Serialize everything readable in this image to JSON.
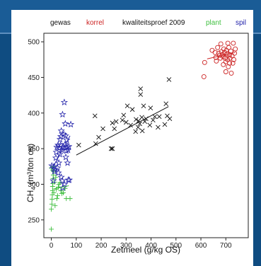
{
  "chart_data": {
    "type": "scatter",
    "title": "kwaliteitsproef 2009",
    "xlabel": "Zetmeel (g/kg OS)",
    "ylabel_main": "CH",
    "ylabel_sub": "4",
    "ylabel_rest": " (m³/ton os)",
    "xlim": [
      -30,
      790
    ],
    "ylim": [
      225,
      512
    ],
    "xticks": [
      0,
      100,
      200,
      300,
      400,
      500,
      600,
      700
    ],
    "yticks": [
      250,
      300,
      350,
      400,
      450,
      500
    ],
    "legend_header": "gewas",
    "legend": [
      "korrel",
      "plant",
      "spil"
    ],
    "colors": {
      "gewas": "#111111",
      "korrel": "#cc2222",
      "plant": "#3fbf3f",
      "spil": "#2222aa",
      "text": "#111111"
    },
    "series": [
      {
        "name": "gewas",
        "marker": "x",
        "color": "#111111",
        "points": [
          [
            110,
            355
          ],
          [
            178,
            357
          ],
          [
            175,
            396
          ],
          [
            190,
            366
          ],
          [
            207,
            378
          ],
          [
            240,
            350
          ],
          [
            245,
            350
          ],
          [
            253,
            378
          ],
          [
            245,
            386
          ],
          [
            260,
            388
          ],
          [
            285,
            390
          ],
          [
            290,
            397
          ],
          [
            300,
            387
          ],
          [
            305,
            410
          ],
          [
            318,
            383
          ],
          [
            325,
            405
          ],
          [
            338,
            374
          ],
          [
            340,
            391
          ],
          [
            348,
            380
          ],
          [
            350,
            389
          ],
          [
            355,
            385
          ],
          [
            358,
            426
          ],
          [
            358,
            434
          ],
          [
            363,
            394
          ],
          [
            365,
            375
          ],
          [
            370,
            410
          ],
          [
            375,
            388
          ],
          [
            380,
            392
          ],
          [
            395,
            383
          ],
          [
            398,
            407
          ],
          [
            408,
            390
          ],
          [
            415,
            395
          ],
          [
            428,
            380
          ],
          [
            433,
            395
          ],
          [
            455,
            384
          ],
          [
            460,
            413
          ],
          [
            465,
            396
          ],
          [
            472,
            447
          ],
          [
            475,
            392
          ]
        ],
        "trend": [
          [
            100,
            341
          ],
          [
            470,
            409
          ]
        ]
      },
      {
        "name": "korrel",
        "marker": "circle",
        "color": "#cc2222",
        "points": [
          [
            612,
            451
          ],
          [
            615,
            471
          ],
          [
            645,
            488
          ],
          [
            657,
            485
          ],
          [
            660,
            478
          ],
          [
            662,
            473
          ],
          [
            667,
            492
          ],
          [
            672,
            484
          ],
          [
            675,
            481
          ],
          [
            678,
            477
          ],
          [
            680,
            497
          ],
          [
            682,
            486
          ],
          [
            686,
            482
          ],
          [
            689,
            479
          ],
          [
            690,
            468
          ],
          [
            692,
            490
          ],
          [
            695,
            485
          ],
          [
            698,
            477
          ],
          [
            700,
            472
          ],
          [
            702,
            488
          ],
          [
            705,
            483
          ],
          [
            707,
            475
          ],
          [
            708,
            498
          ],
          [
            710,
            465
          ],
          [
            712,
            492
          ],
          [
            715,
            482
          ],
          [
            717,
            477
          ],
          [
            720,
            487
          ],
          [
            722,
            456
          ],
          [
            725,
            480
          ],
          [
            728,
            470
          ],
          [
            730,
            498
          ],
          [
            732,
            475
          ],
          [
            735,
            484
          ],
          [
            738,
            490
          ],
          [
            715,
            470
          ],
          [
            700,
            458
          ]
        ],
        "trend": [
          [
            625,
            476
          ],
          [
            738,
            485
          ]
        ]
      },
      {
        "name": "plant",
        "marker": "plus",
        "color": "#3fbf3f",
        "points": [
          [
            0,
            237
          ],
          [
            0,
            265
          ],
          [
            2,
            272
          ],
          [
            3,
            279
          ],
          [
            4,
            285
          ],
          [
            5,
            291
          ],
          [
            5,
            297
          ],
          [
            6,
            301
          ],
          [
            7,
            308
          ],
          [
            8,
            313
          ],
          [
            9,
            318
          ],
          [
            10,
            325
          ],
          [
            0,
            323
          ],
          [
            10,
            288
          ],
          [
            13,
            303
          ],
          [
            15,
            270
          ],
          [
            18,
            310
          ],
          [
            20,
            293
          ],
          [
            22,
            280
          ],
          [
            25,
            284
          ],
          [
            28,
            296
          ],
          [
            30,
            300
          ],
          [
            35,
            302
          ],
          [
            38,
            291
          ],
          [
            42,
            287
          ],
          [
            48,
            288
          ],
          [
            55,
            294
          ],
          [
            60,
            280
          ],
          [
            75,
            280
          ],
          [
            5,
            320
          ]
        ],
        "trend": [
          [
            5,
            293
          ],
          [
            70,
            298
          ]
        ]
      },
      {
        "name": "spil",
        "marker": "star",
        "color": "#2222aa",
        "points": [
          [
            2,
            326
          ],
          [
            8,
            305
          ],
          [
            10,
            325
          ],
          [
            12,
            318
          ],
          [
            14,
            321
          ],
          [
            18,
            337
          ],
          [
            20,
            345
          ],
          [
            22,
            352
          ],
          [
            25,
            323
          ],
          [
            27,
            355
          ],
          [
            28,
            316
          ],
          [
            30,
            330
          ],
          [
            32,
            351
          ],
          [
            34,
            342
          ],
          [
            35,
            363
          ],
          [
            37,
            355
          ],
          [
            38,
            367
          ],
          [
            40,
            375
          ],
          [
            40,
            310
          ],
          [
            42,
            348
          ],
          [
            44,
            305
          ],
          [
            45,
            398
          ],
          [
            46,
            295
          ],
          [
            48,
            352
          ],
          [
            50,
            370
          ],
          [
            52,
            415
          ],
          [
            53,
            300
          ],
          [
            55,
            356
          ],
          [
            56,
            385
          ],
          [
            57,
            368
          ],
          [
            58,
            338
          ],
          [
            60,
            347
          ],
          [
            62,
            362
          ],
          [
            63,
            352
          ],
          [
            65,
            330
          ],
          [
            67,
            348
          ],
          [
            68,
            306
          ],
          [
            70,
            353
          ],
          [
            72,
            306
          ],
          [
            78,
            384
          ]
        ],
        "trend": [
          [
            8,
            325
          ],
          [
            75,
            368
          ]
        ]
      }
    ]
  }
}
